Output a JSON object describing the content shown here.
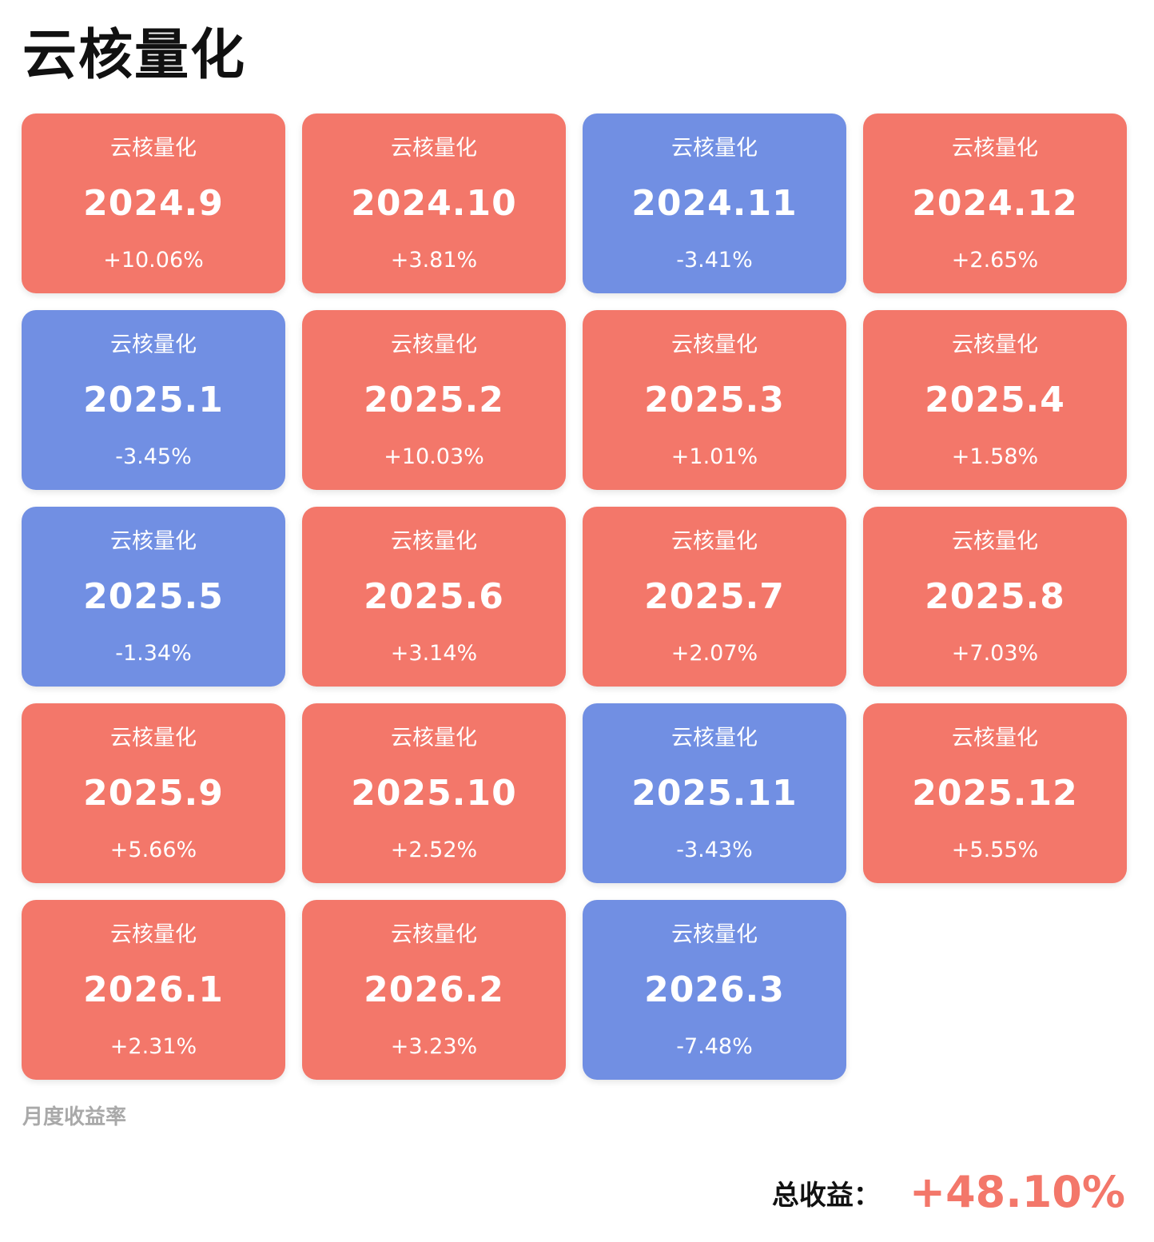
{
  "title": "云核量化",
  "colors": {
    "positive": "#F3776A",
    "negative": "#718FE3"
  },
  "months": [
    {
      "brand": "云核量化",
      "month": "2024.9",
      "return": "+10.06%",
      "value": 10.06
    },
    {
      "brand": "云核量化",
      "month": "2024.10",
      "return": "+3.81%",
      "value": 3.81
    },
    {
      "brand": "云核量化",
      "month": "2024.11",
      "return": "-3.41%",
      "value": -3.41
    },
    {
      "brand": "云核量化",
      "month": "2024.12",
      "return": "+2.65%",
      "value": 2.65
    },
    {
      "brand": "云核量化",
      "month": "2025.1",
      "return": "-3.45%",
      "value": -3.45
    },
    {
      "brand": "云核量化",
      "month": "2025.2",
      "return": "+10.03%",
      "value": 10.03
    },
    {
      "brand": "云核量化",
      "month": "2025.3",
      "return": "+1.01%",
      "value": 1.01
    },
    {
      "brand": "云核量化",
      "month": "2025.4",
      "return": "+1.58%",
      "value": 1.58
    },
    {
      "brand": "云核量化",
      "month": "2025.5",
      "return": "-1.34%",
      "value": -1.34
    },
    {
      "brand": "云核量化",
      "month": "2025.6",
      "return": "+3.14%",
      "value": 3.14
    },
    {
      "brand": "云核量化",
      "month": "2025.7",
      "return": "+2.07%",
      "value": 2.07
    },
    {
      "brand": "云核量化",
      "month": "2025.8",
      "return": "+7.03%",
      "value": 7.03
    },
    {
      "brand": "云核量化",
      "month": "2025.9",
      "return": "+5.66%",
      "value": 5.66
    },
    {
      "brand": "云核量化",
      "month": "2025.10",
      "return": "+2.52%",
      "value": 2.52
    },
    {
      "brand": "云核量化",
      "month": "2025.11",
      "return": "-3.43%",
      "value": -3.43
    },
    {
      "brand": "云核量化",
      "month": "2025.12",
      "return": "+5.55%",
      "value": 5.55
    },
    {
      "brand": "云核量化",
      "month": "2026.1",
      "return": "+2.31%",
      "value": 2.31
    },
    {
      "brand": "云核量化",
      "month": "2026.2",
      "return": "+3.23%",
      "value": 3.23
    },
    {
      "brand": "云核量化",
      "month": "2026.3",
      "return": "-7.48%",
      "value": -7.48
    }
  ],
  "caption": "月度收益率",
  "total": {
    "label": "总收益：",
    "value": "+48.10%"
  }
}
